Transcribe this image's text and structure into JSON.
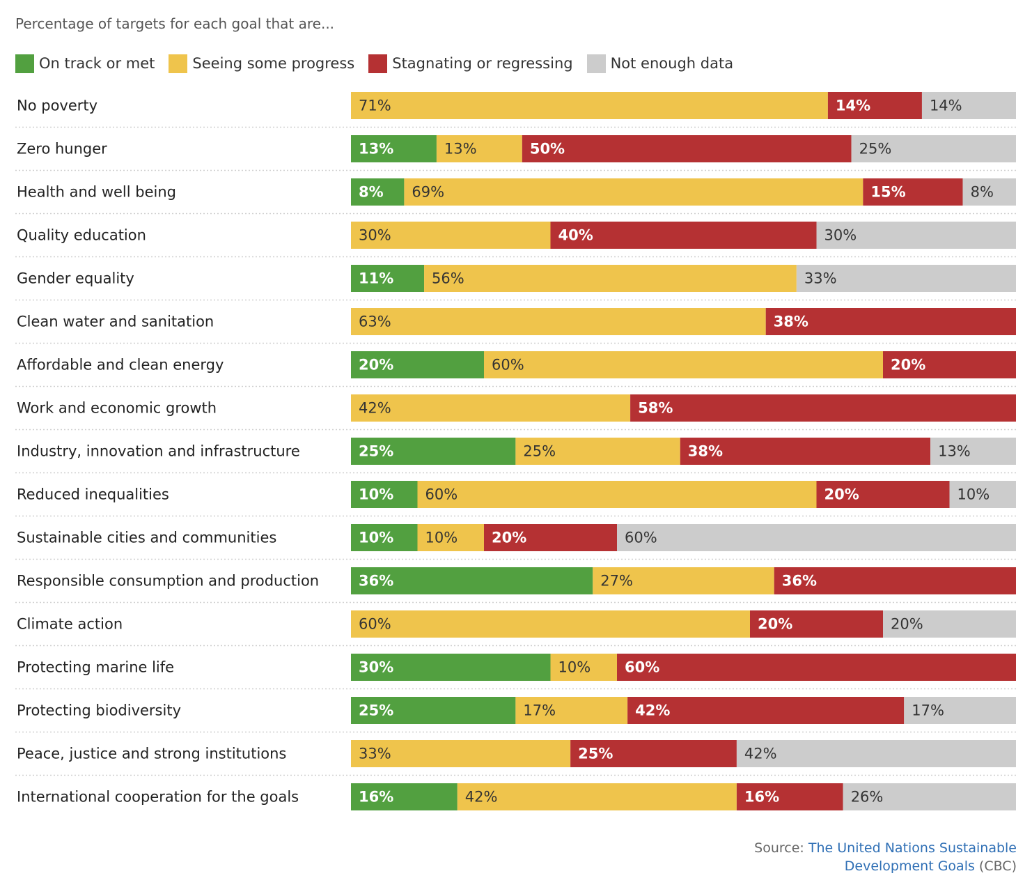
{
  "chart_data": {
    "type": "bar",
    "stacked": true,
    "orientation": "horizontal",
    "title": "Percentage of targets for each goal that are...",
    "xlim": [
      0,
      100
    ],
    "legend_position": "top",
    "series": [
      {
        "name": "On track or met",
        "color": "#52a040",
        "label_color": "#ffffff",
        "values": [
          0,
          13,
          8,
          0,
          11,
          0,
          20,
          0,
          25,
          10,
          10,
          36,
          0,
          30,
          25,
          0,
          16
        ]
      },
      {
        "name": "Seeing some progress",
        "color": "#efc44c",
        "label_color": "#333333",
        "values": [
          71,
          13,
          69,
          30,
          56,
          63,
          60,
          42,
          25,
          60,
          10,
          27,
          60,
          10,
          17,
          33,
          42
        ]
      },
      {
        "name": "Stagnating or regressing",
        "color": "#b53133",
        "label_color": "#ffffff",
        "values": [
          14,
          50,
          15,
          40,
          0,
          38,
          20,
          58,
          38,
          20,
          20,
          36,
          20,
          60,
          42,
          25,
          16
        ]
      },
      {
        "name": "Not enough data",
        "color": "#cccccc",
        "label_color": "#333333",
        "values": [
          14,
          25,
          8,
          30,
          33,
          0,
          0,
          0,
          13,
          10,
          60,
          0,
          20,
          0,
          17,
          42,
          26
        ]
      }
    ],
    "categories": [
      "No poverty",
      "Zero hunger",
      "Health and well being",
      "Quality education",
      "Gender equality",
      "Clean water and sanitation",
      "Affordable and clean energy",
      "Work and economic growth",
      "Industry, innovation and infrastructure",
      "Reduced inequalities",
      "Sustainable cities and communities",
      "Responsible consumption and production",
      "Climate action",
      "Protecting marine life",
      "Protecting biodiversity",
      "Peace, justice and strong institutions",
      "International cooperation for the goals"
    ],
    "value_suffix": "%"
  },
  "source": {
    "prefix": "Source: ",
    "link_line1": "The United Nations Sustainable",
    "link_line2": "Development Goals",
    "suffix": " (CBC)"
  }
}
